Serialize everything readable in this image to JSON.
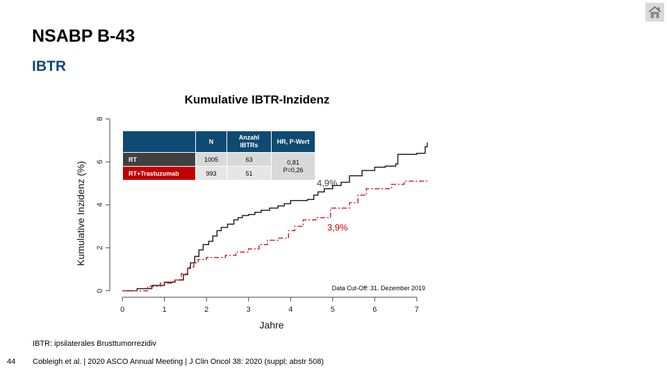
{
  "slide": {
    "title": "NSABP B-43",
    "subtitle": "IBTR",
    "page_number": "44",
    "footnote": "IBTR: ipsilaterales Brusttumorrezidiv",
    "citation": "Cobleigh et al. | 2020 ASCO Annual Meeting | J Clin Oncol 38: 2020 (suppl; abstr 508)",
    "home_icon": "home-icon"
  },
  "legend_table": {
    "headers": [
      "",
      "N",
      "Anzahl IBTRs",
      "HR, P-Wert"
    ],
    "rows": [
      {
        "label": "RT",
        "n": "1005",
        "events": "63",
        "color": "#404040"
      },
      {
        "label": "RT+Trastuzumab",
        "n": "993",
        "events": "51",
        "color": "#c00000"
      }
    ],
    "hr_line1": "0,81",
    "hr_line2": "P=0,26"
  },
  "chart_data": {
    "type": "line",
    "title": "Kumulative IBTR-Inzidenz",
    "xlabel": "Jahre",
    "ylabel": "Kumulative Inzidenz (%)",
    "xlim": [
      -0.3,
      7.3
    ],
    "ylim": [
      -0.3,
      8.2
    ],
    "xticks": [
      0,
      1,
      2,
      3,
      4,
      5,
      6,
      7
    ],
    "yticks": [
      0,
      2,
      4,
      6,
      8
    ],
    "grid": false,
    "step": true,
    "annotations": [
      {
        "text": "4,9%",
        "x": 5.0,
        "y": 4.9,
        "color": "#404040"
      },
      {
        "text": "3,9%",
        "x": 5.0,
        "y": 3.9,
        "color": "#c00000"
      },
      {
        "text": "Data Cut-Off: 31. Dezember 2019",
        "x": 7.2,
        "y": 0.1,
        "color": "#000000"
      }
    ],
    "series": [
      {
        "name": "RT",
        "color": "#222222",
        "dash": "none",
        "x": [
          0,
          0.35,
          0.7,
          1.0,
          1.25,
          1.45,
          1.55,
          1.62,
          1.72,
          1.82,
          1.92,
          2.05,
          2.15,
          2.25,
          2.35,
          2.5,
          2.65,
          2.75,
          2.85,
          3.0,
          3.15,
          3.3,
          3.5,
          3.7,
          3.85,
          4.0,
          4.4,
          4.55,
          4.65,
          4.8,
          5.0,
          5.2,
          5.4,
          5.7,
          6.0,
          6.25,
          6.5,
          6.55,
          7.0,
          7.2,
          7.25
        ],
        "y": [
          0,
          0.1,
          0.25,
          0.4,
          0.5,
          0.75,
          1.05,
          1.3,
          1.6,
          1.9,
          2.15,
          2.3,
          2.55,
          2.8,
          2.95,
          3.1,
          3.3,
          3.4,
          3.5,
          3.55,
          3.65,
          3.75,
          3.85,
          3.95,
          4.05,
          4.2,
          4.25,
          4.45,
          4.6,
          4.75,
          4.9,
          5.05,
          5.35,
          5.6,
          5.75,
          5.8,
          5.9,
          6.35,
          6.4,
          6.7,
          6.9
        ]
      },
      {
        "name": "RT+Trastuzumab",
        "color": "#d42020",
        "dash": "7,3,2,3",
        "x": [
          0,
          0.6,
          0.9,
          1.2,
          1.4,
          1.55,
          1.7,
          1.8,
          2.0,
          2.45,
          2.7,
          3.0,
          3.25,
          3.45,
          3.7,
          3.95,
          4.1,
          4.3,
          4.6,
          4.95,
          5.4,
          5.6,
          5.8,
          6.4,
          6.7,
          7.25
        ],
        "y": [
          0,
          0.2,
          0.35,
          0.5,
          0.8,
          1.1,
          1.3,
          1.45,
          1.55,
          1.65,
          1.8,
          1.95,
          2.15,
          2.35,
          2.45,
          2.8,
          3.0,
          3.3,
          3.4,
          3.85,
          4.1,
          4.45,
          4.75,
          4.95,
          5.1,
          5.1
        ]
      }
    ]
  }
}
